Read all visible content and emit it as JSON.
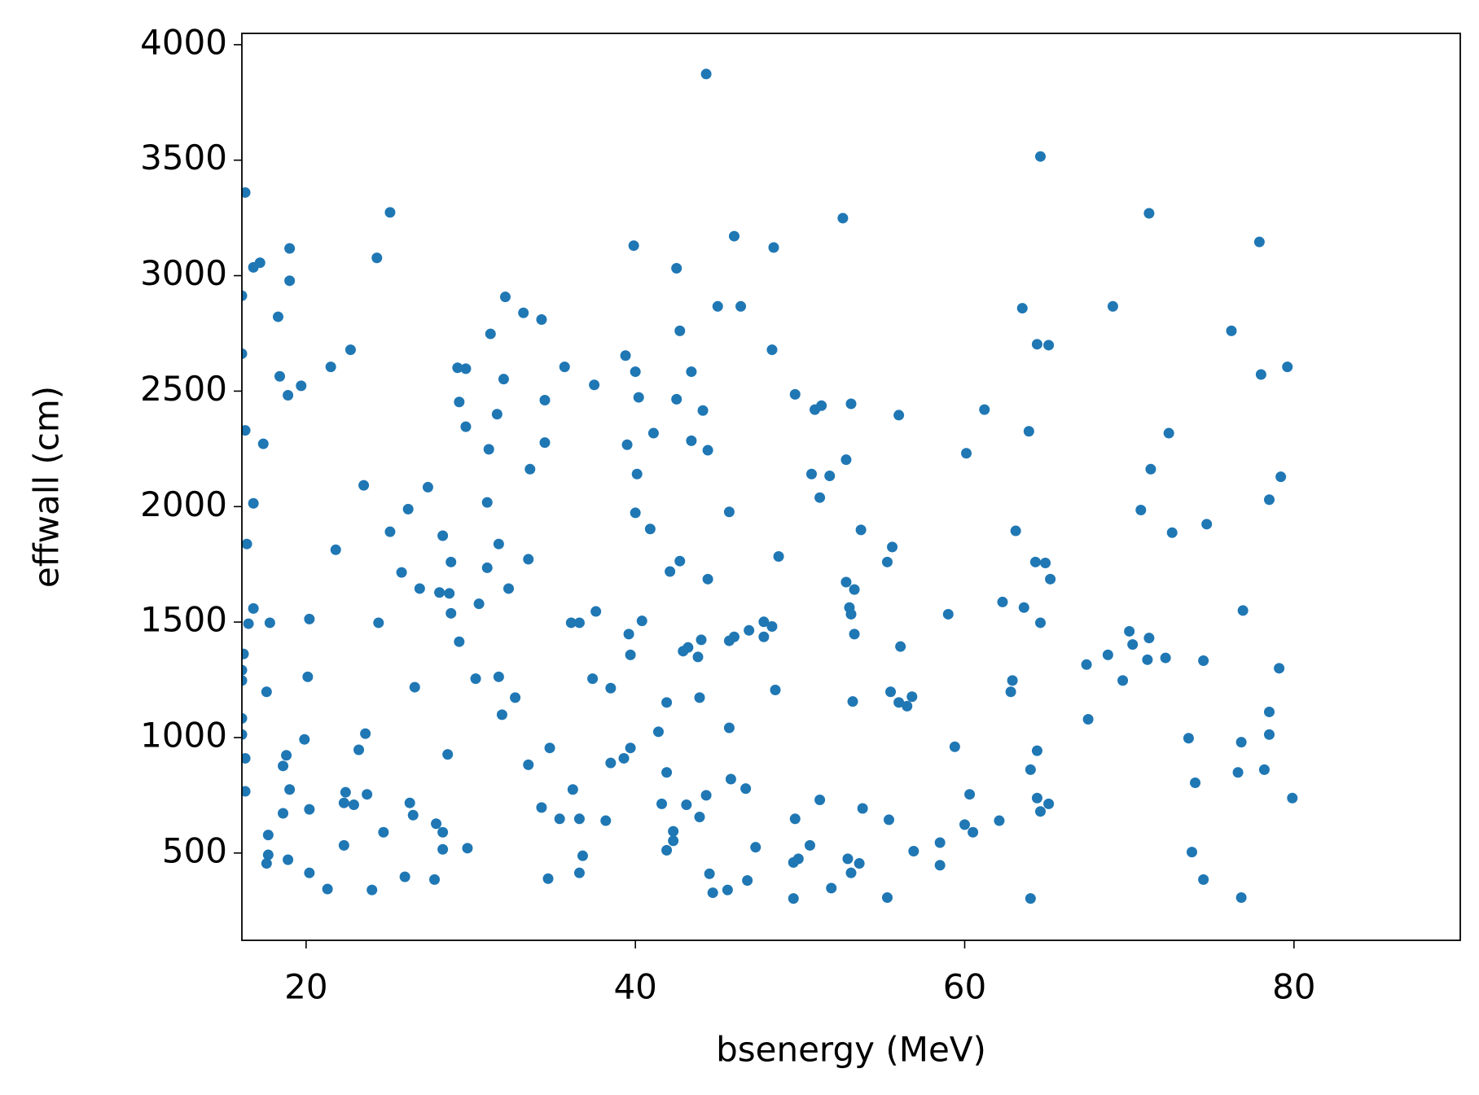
{
  "chart_data": {
    "type": "scatter",
    "x_label": "bsenergy (MeV)",
    "y_label": "effwall (cm)",
    "color": "#1f77b4",
    "xlim": [
      16.1,
      90.1
    ],
    "ylim": [
      122,
      4049
    ],
    "xticks": [
      20,
      40,
      60,
      80
    ],
    "yticks": [
      500,
      1000,
      1500,
      2000,
      2500,
      3000,
      3500,
      4000
    ],
    "grid": false,
    "x": [
      44.3,
      64.6,
      16.3,
      25.1,
      71.2,
      52.6,
      46.0,
      39.9,
      48.4,
      19.0,
      77.9,
      17.2,
      16.8,
      24.3,
      42.5,
      19.0,
      16.1,
      32.1,
      45.0,
      46.4,
      69.0,
      63.5,
      33.2,
      34.3,
      18.3,
      42.7,
      76.2,
      31.2,
      64.4,
      65.1,
      48.3,
      22.7,
      39.4,
      16.1,
      21.5,
      29.2,
      29.7,
      35.7,
      40.0,
      79.6,
      43.4,
      78.0,
      18.4,
      32.0,
      19.7,
      37.5,
      18.9,
      49.7,
      40.2,
      34.5,
      29.3,
      42.5,
      53.1,
      51.3,
      50.9,
      44.1,
      61.2,
      56.0,
      31.6,
      29.7,
      63.9,
      41.1,
      72.4,
      16.3,
      43.4,
      17.4,
      34.5,
      39.5,
      44.4,
      31.1,
      60.1,
      52.8,
      33.6,
      71.3,
      50.7,
      40.1,
      51.8,
      79.2,
      23.5,
      27.4,
      16.8,
      31.0,
      51.2,
      78.5,
      26.2,
      40.0,
      45.7,
      70.7,
      74.7,
      40.9,
      53.7,
      63.1,
      25.1,
      72.6,
      28.3,
      16.4,
      31.7,
      21.8,
      55.6,
      48.7,
      33.5,
      28.8,
      42.7,
      55.3,
      64.3,
      64.9,
      31.0,
      25.8,
      42.1,
      44.4,
      65.2,
      52.8,
      26.9,
      32.3,
      53.3,
      28.1,
      28.7,
      30.5,
      62.3,
      16.8,
      37.6,
      53.0,
      63.6,
      76.9,
      28.8,
      59.0,
      53.1,
      20.2,
      40.4,
      16.5,
      17.8,
      24.4,
      36.1,
      36.6,
      47.8,
      64.6,
      48.3,
      46.9,
      39.6,
      53.3,
      70.0,
      46.0,
      47.8,
      44.0,
      45.7,
      71.2,
      29.3,
      70.2,
      56.1,
      43.2,
      42.9,
      39.7,
      43.8,
      68.7,
      16.2,
      71.1,
      72.2,
      74.5,
      67.4,
      79.1,
      16.1,
      26.6,
      20.1,
      30.3,
      31.7,
      37.4,
      62.9,
      69.6,
      16.1,
      38.5,
      48.5,
      62.8,
      55.5,
      17.6,
      32.7,
      43.9,
      56.8,
      56.0,
      53.2,
      41.9,
      56.5,
      31.9,
      78.5,
      16.1,
      67.5,
      45.7,
      23.6,
      41.4,
      16.1,
      19.9,
      78.5,
      73.6,
      76.8,
      64.4,
      23.2,
      34.8,
      59.4,
      39.7,
      18.8,
      28.6,
      16.3,
      39.3,
      38.5,
      33.5,
      18.6,
      41.9,
      64.0,
      76.6,
      78.2,
      45.8,
      74.0,
      46.7,
      36.2,
      19.0,
      16.3,
      44.3,
      60.3,
      23.7,
      22.4,
      79.9,
      64.4,
      65.1,
      26.3,
      22.3,
      22.9,
      41.6,
      43.1,
      51.2,
      53.8,
      34.3,
      20.2,
      64.6,
      18.6,
      26.5,
      43.9,
      35.4,
      36.6,
      38.2,
      49.7,
      55.4,
      62.1,
      27.9,
      60.0,
      60.5,
      42.3,
      28.3,
      24.7,
      17.7,
      42.3,
      58.5,
      22.3,
      50.6,
      47.3,
      29.8,
      41.9,
      28.3,
      56.9,
      73.8,
      36.8,
      17.7,
      52.9,
      49.9,
      18.9,
      49.6,
      53.6,
      17.6,
      58.5,
      53.1,
      36.6,
      20.2,
      44.5,
      26.0,
      34.7,
      27.8,
      74.5,
      46.8,
      21.3,
      51.9,
      24.0,
      45.6,
      44.7,
      55.3,
      49.6,
      64.0,
      76.8
    ],
    "values": [
      3873,
      3516,
      3360,
      3274,
      3270,
      3249,
      3171,
      3130,
      3122,
      3118,
      3146,
      3056,
      3036,
      3077,
      3032,
      2978,
      2913,
      2908,
      2867,
      2867,
      2867,
      2859,
      2839,
      2810,
      2822,
      2761,
      2761,
      2748,
      2703,
      2699,
      2679,
      2679,
      2654,
      2662,
      2605,
      2601,
      2597,
      2605,
      2584,
      2605,
      2584,
      2572,
      2564,
      2552,
      2523,
      2527,
      2482,
      2486,
      2473,
      2461,
      2453,
      2465,
      2445,
      2437,
      2420,
      2416,
      2420,
      2396,
      2400,
      2346,
      2326,
      2318,
      2318,
      2330,
      2285,
      2272,
      2277,
      2268,
      2244,
      2248,
      2231,
      2203,
      2162,
      2162,
      2141,
      2141,
      2133,
      2129,
      2092,
      2084,
      2014,
      2018,
      2039,
      2030,
      1989,
      1973,
      1977,
      1985,
      1924,
      1903,
      1899,
      1895,
      1891,
      1887,
      1874,
      1838,
      1838,
      1813,
      1825,
      1784,
      1772,
      1760,
      1764,
      1760,
      1760,
      1756,
      1735,
      1715,
      1719,
      1686,
      1686,
      1673,
      1645,
      1645,
      1641,
      1628,
      1624,
      1579,
      1587,
      1559,
      1546,
      1563,
      1563,
      1550,
      1538,
      1534,
      1534,
      1513,
      1505,
      1493,
      1497,
      1497,
      1497,
      1497,
      1501,
      1497,
      1481,
      1464,
      1448,
      1448,
      1460,
      1436,
      1436,
      1423,
      1419,
      1431,
      1415,
      1403,
      1394,
      1390,
      1374,
      1358,
      1349,
      1358,
      1362,
      1337,
      1345,
      1333,
      1316,
      1300,
      1292,
      1218,
      1263,
      1255,
      1263,
      1255,
      1247,
      1247,
      1247,
      1214,
      1206,
      1198,
      1198,
      1198,
      1173,
      1173,
      1177,
      1152,
      1156,
      1152,
      1136,
      1099,
      1111,
      1083,
      1079,
      1042,
      1017,
      1025,
      1013,
      992,
      1013,
      997,
      980,
      943,
      947,
      955,
      960,
      955,
      923,
      927,
      910,
      910,
      890,
      882,
      877,
      849,
      861,
      849,
      861,
      820,
      804,
      779,
      775,
      775,
      767,
      750,
      754,
      754,
      763,
      738,
      738,
      713,
      717,
      717,
      709,
      713,
      709,
      730,
      693,
      697,
      689,
      680,
      672,
      664,
      656,
      648,
      648,
      640,
      648,
      644,
      640,
      627,
      623,
      590,
      594,
      590,
      590,
      578,
      553,
      545,
      533,
      533,
      525,
      521,
      512,
      516,
      508,
      504,
      488,
      492,
      475,
      475,
      471,
      459,
      455,
      455,
      447,
      414,
      414,
      414,
      410,
      397,
      389,
      385,
      385,
      381,
      344,
      348,
      340,
      340,
      328,
      307,
      303,
      303,
      307
    ]
  }
}
